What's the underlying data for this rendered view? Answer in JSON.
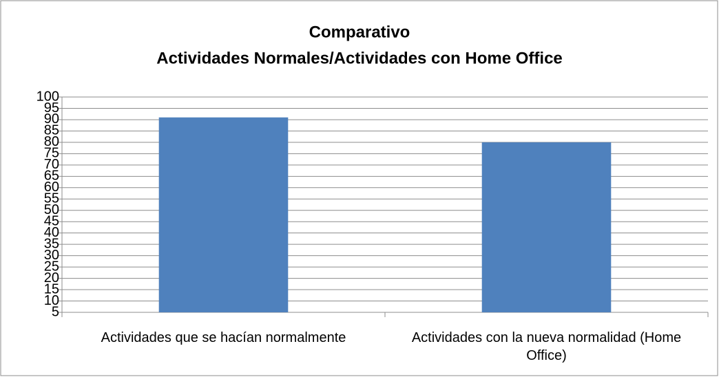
{
  "chart_data": {
    "type": "bar",
    "title": [
      "Comparativo",
      "Actividades Normales/Actividades con Home Office"
    ],
    "categories": [
      "Actividades que se hacían normalmente",
      "Actividades con la nueva normalidad (Home Office)"
    ],
    "values": [
      91,
      80
    ],
    "color": "#4f81bd",
    "ylim": [
      5,
      100
    ],
    "yticks": [
      5,
      10,
      15,
      20,
      25,
      30,
      35,
      40,
      45,
      50,
      55,
      60,
      65,
      70,
      75,
      80,
      85,
      90,
      95,
      100
    ],
    "grid": true
  }
}
